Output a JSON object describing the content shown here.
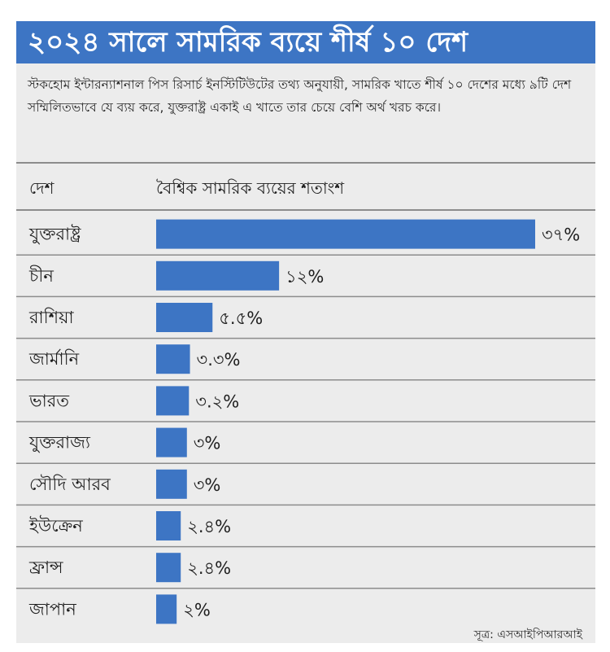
{
  "chart_data": {
    "type": "bar",
    "orientation": "horizontal",
    "title": "২০২৪ সালে সামরিক ব্যয়ে শীর্ষ ১০ দেশ",
    "subtitle": "স্টকহোম ইন্টারন্যাশনাল পিস রিসার্চ ইনস্টিটিউটের তথ্য অনুযায়ী, সামরিক খাতে শীর্ষ ১০ দেশের মধ্যে ৯টি দেশ সম্মিলিতভাবে যে ব্যয় করে, যুক্তরাষ্ট্র একাই এ খাতে তার চেয়ে বেশি অর্থ খরচ করে।",
    "column_headers": [
      "দেশ",
      "বৈশ্বিক সামরিক ব্যয়ের শতাংশ"
    ],
    "categories": [
      "যুক্তরাষ্ট্র",
      "চীন",
      "রাশিয়া",
      "জার্মানি",
      "ভারত",
      "যুক্তরাজ্য",
      "সৌদি আরব",
      "ইউক্রেন",
      "ফ্রান্স",
      "জাপান"
    ],
    "values": [
      37,
      12,
      5.5,
      3.3,
      3.2,
      3,
      3,
      2.4,
      2.4,
      2
    ],
    "value_labels": [
      "৩৭%",
      "১২%",
      "৫.৫%",
      "৩.৩%",
      "৩.২%",
      "৩%",
      "৩%",
      "২.৪%",
      "২.৪%",
      "২%"
    ],
    "unit": "%",
    "source": "সূত্র: এসআইপিআরআই",
    "colors": {
      "bar": "#3d75c4",
      "title_bg": "#3d75c4",
      "panel_bg": "#ececec",
      "separator": "#8c8c8c"
    },
    "grid": false
  }
}
